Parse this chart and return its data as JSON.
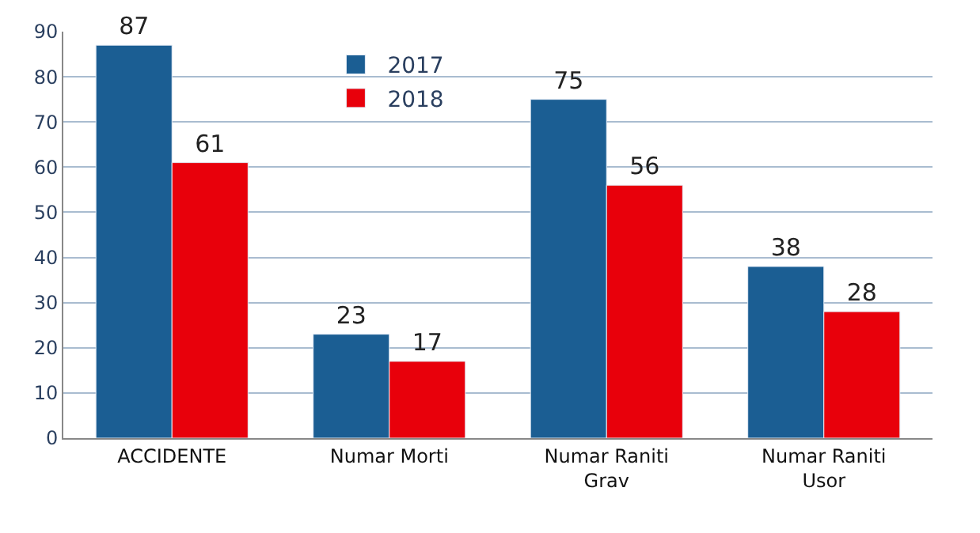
{
  "chart_data": {
    "type": "bar",
    "categories": [
      "ACCIDENTE",
      "Numar Morti",
      "Numar Raniti Grav",
      "Numar Raniti Usor"
    ],
    "series": [
      {
        "name": "2017",
        "color": "#1b5e93",
        "values": [
          87,
          23,
          75,
          38
        ]
      },
      {
        "name": "2018",
        "color": "#e8000b",
        "values": [
          61,
          17,
          56,
          28
        ]
      }
    ],
    "ylim": [
      0,
      90
    ],
    "yticks": [
      0,
      10,
      20,
      30,
      40,
      50,
      60,
      70,
      80,
      90
    ],
    "grid": "y",
    "legend": "top",
    "data_labels": true
  }
}
